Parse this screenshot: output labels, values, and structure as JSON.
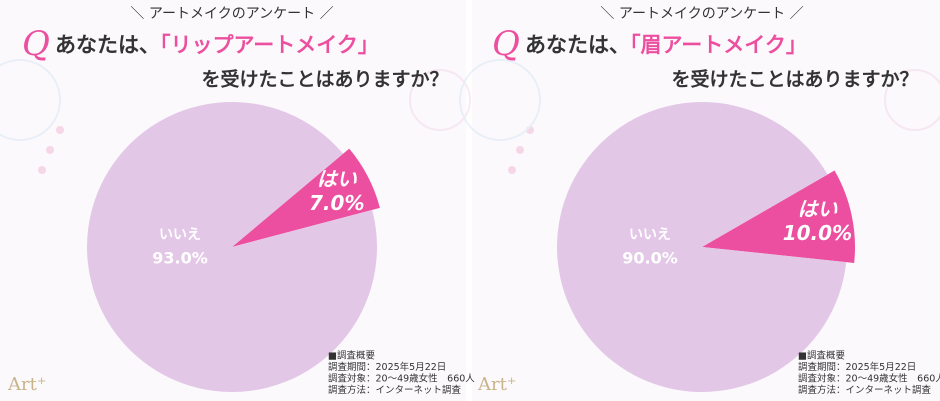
{
  "chart_data": [
    {
      "type": "pie",
      "header": "＼ アートメイクのアンケート ／",
      "q": "Q",
      "title_prefix": "あなたは、",
      "title_highlight": "「リップアートメイク」",
      "title_suffix": "を受けたことはありますか？",
      "categories": [
        "いいえ",
        "はい"
      ],
      "values": [
        93,
        7
      ],
      "value_labels": [
        "93.0%",
        "7.0%"
      ],
      "colors": [
        "#e3c7e7",
        "#ec4f9f"
      ],
      "note": [
        "■調査概要",
        "調査期間：2025年5月22日",
        "調査対象：20〜49歳女性　660人",
        "調査方法：インターネット調査"
      ],
      "logo": "Art⁺"
    },
    {
      "type": "pie",
      "header": "＼ アートメイクのアンケート ／",
      "q": "Q",
      "title_prefix": "あなたは、",
      "title_highlight": "「眉アートメイク」",
      "title_suffix": "を受けたことはありますか？",
      "categories": [
        "いいえ",
        "はい"
      ],
      "values": [
        90,
        10
      ],
      "value_labels": [
        "90.0%",
        "10.0%"
      ],
      "colors": [
        "#e3c7e7",
        "#ec4f9f"
      ],
      "note": [
        "■調査概要",
        "調査期間：2025年5月22日",
        "調査対象：20〜49歳女性　660人",
        "調査方法：インターネット調査"
      ],
      "logo": "Art⁺"
    }
  ]
}
